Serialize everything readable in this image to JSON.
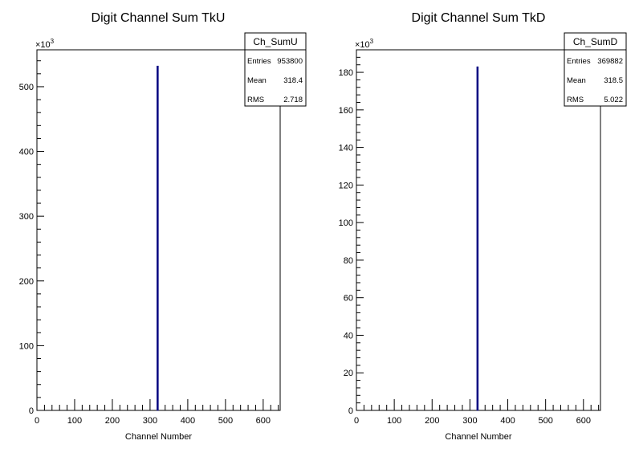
{
  "chart_data": [
    {
      "type": "bar",
      "title": "Digit Channel Sum TkU",
      "xlabel": "Channel Number",
      "ylabel": "",
      "y_multiplier_label": "×10³",
      "xlim": [
        0,
        645
      ],
      "ylim": [
        0,
        557
      ],
      "x_ticks": [
        0,
        100,
        200,
        300,
        400,
        500,
        600
      ],
      "y_ticks": [
        0,
        100,
        200,
        300,
        400,
        500
      ],
      "bars": [
        {
          "x": 318,
          "width": 1,
          "value": 532
        }
      ],
      "stats": {
        "name": "Ch_SumU",
        "rows": [
          {
            "label": "Entries",
            "value": "953800"
          },
          {
            "label": "Mean",
            "value": "318.4"
          },
          {
            "label": "RMS",
            "value": "2.718"
          }
        ]
      },
      "color": "#000080"
    },
    {
      "type": "bar",
      "title": "Digit Channel Sum TkD",
      "xlabel": "Channel Number",
      "ylabel": "",
      "y_multiplier_label": "×10³",
      "xlim": [
        0,
        645
      ],
      "ylim": [
        0,
        192
      ],
      "x_ticks": [
        0,
        100,
        200,
        300,
        400,
        500,
        600
      ],
      "y_ticks": [
        0,
        20,
        40,
        60,
        80,
        100,
        120,
        140,
        160,
        180
      ],
      "bars": [
        {
          "x": 318,
          "width": 1,
          "value": 183
        }
      ],
      "stats": {
        "name": "Ch_SumD",
        "rows": [
          {
            "label": "Entries",
            "value": "369882"
          },
          {
            "label": "Mean",
            "value": "318.5"
          },
          {
            "label": "RMS",
            "value": "5.022"
          }
        ]
      },
      "color": "#000080"
    }
  ]
}
